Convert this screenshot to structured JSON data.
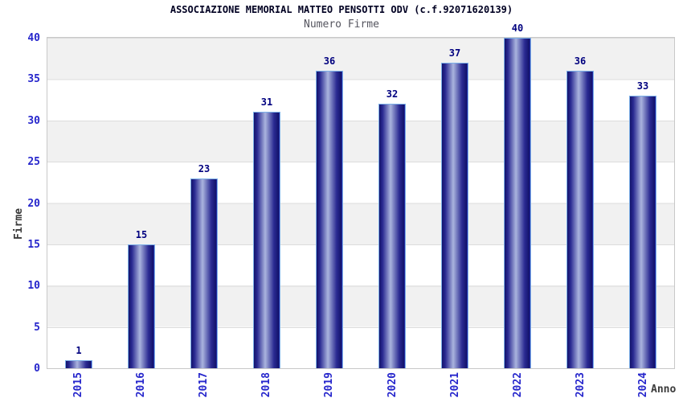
{
  "chart_data": {
    "type": "bar",
    "title": "ASSOCIAZIONE MEMORIAL MATTEO PENSOTTI ODV (c.f.92071620139)",
    "subtitle": "Numero Firme",
    "xlabel": "Anno",
    "ylabel": "Firme",
    "categories": [
      "2015",
      "2016",
      "2017",
      "2018",
      "2019",
      "2020",
      "2021",
      "2022",
      "2023",
      "2024"
    ],
    "values": [
      1,
      15,
      23,
      31,
      36,
      32,
      37,
      40,
      36,
      33
    ],
    "ylim": [
      0,
      40
    ],
    "yticks": [
      0,
      5,
      10,
      15,
      20,
      25,
      30,
      35,
      40
    ],
    "grid": "horizontal gridlines every 5 units with alternating shaded bands",
    "legend": "none",
    "value_labels": "shown above each bar"
  },
  "colors": {
    "title": "#000022",
    "subtitle": "#55555f",
    "axis_tick": "#2626cc",
    "value_label": "#00007f",
    "axis_name": "#3a3a3a",
    "bar_dark": "#13136b",
    "bar_mid": "#2a2a92",
    "bar_light": "#aab4de",
    "bar_border": "#7cb0e8",
    "plot_border": "#c8c8c8",
    "gridline": "#dcdcdc",
    "band_gray": "#f1f1f1"
  }
}
